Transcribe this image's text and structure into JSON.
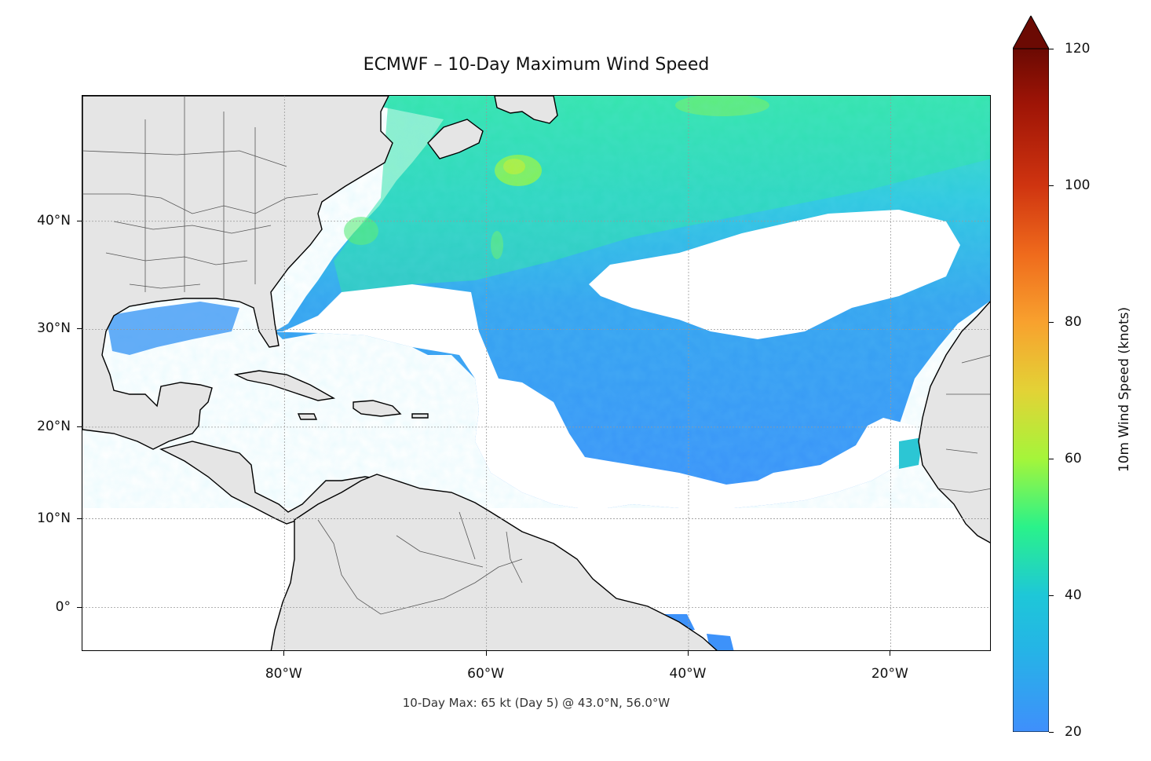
{
  "title": "ECMWF – 10-Day Maximum Wind Speed",
  "footnote": "10-Day Max: 65 kt (Day 5) @ 43.0°N, 56.0°W",
  "x_ticks": [
    "80°W",
    "60°W",
    "40°W",
    "20°W"
  ],
  "y_ticks": [
    "40°N",
    "30°N",
    "20°N",
    "10°N",
    "0°"
  ],
  "colorbar": {
    "label": "10m Wind Speed (knots)",
    "ticks": [
      "120",
      "100",
      "80",
      "60",
      "40",
      "20"
    ],
    "extend": "max",
    "colors": [
      "#3f8ffc",
      "#1ec7d8",
      "#2af28a",
      "#a5f53a",
      "#e3d236",
      "#f8a12e",
      "#ef6a1c",
      "#cf3410",
      "#8a0c04",
      "#6b0a03"
    ]
  },
  "map": {
    "extent": {
      "lon": [
        -100,
        -10
      ],
      "lat": [
        -5,
        50
      ]
    },
    "land_color": "#e5e5e5",
    "coast_color": "#000000",
    "border_color": "#555555",
    "grid": true,
    "max_point": {
      "lat": 43.0,
      "lon": -56.0,
      "value_kt": 65,
      "day": 5
    }
  }
}
